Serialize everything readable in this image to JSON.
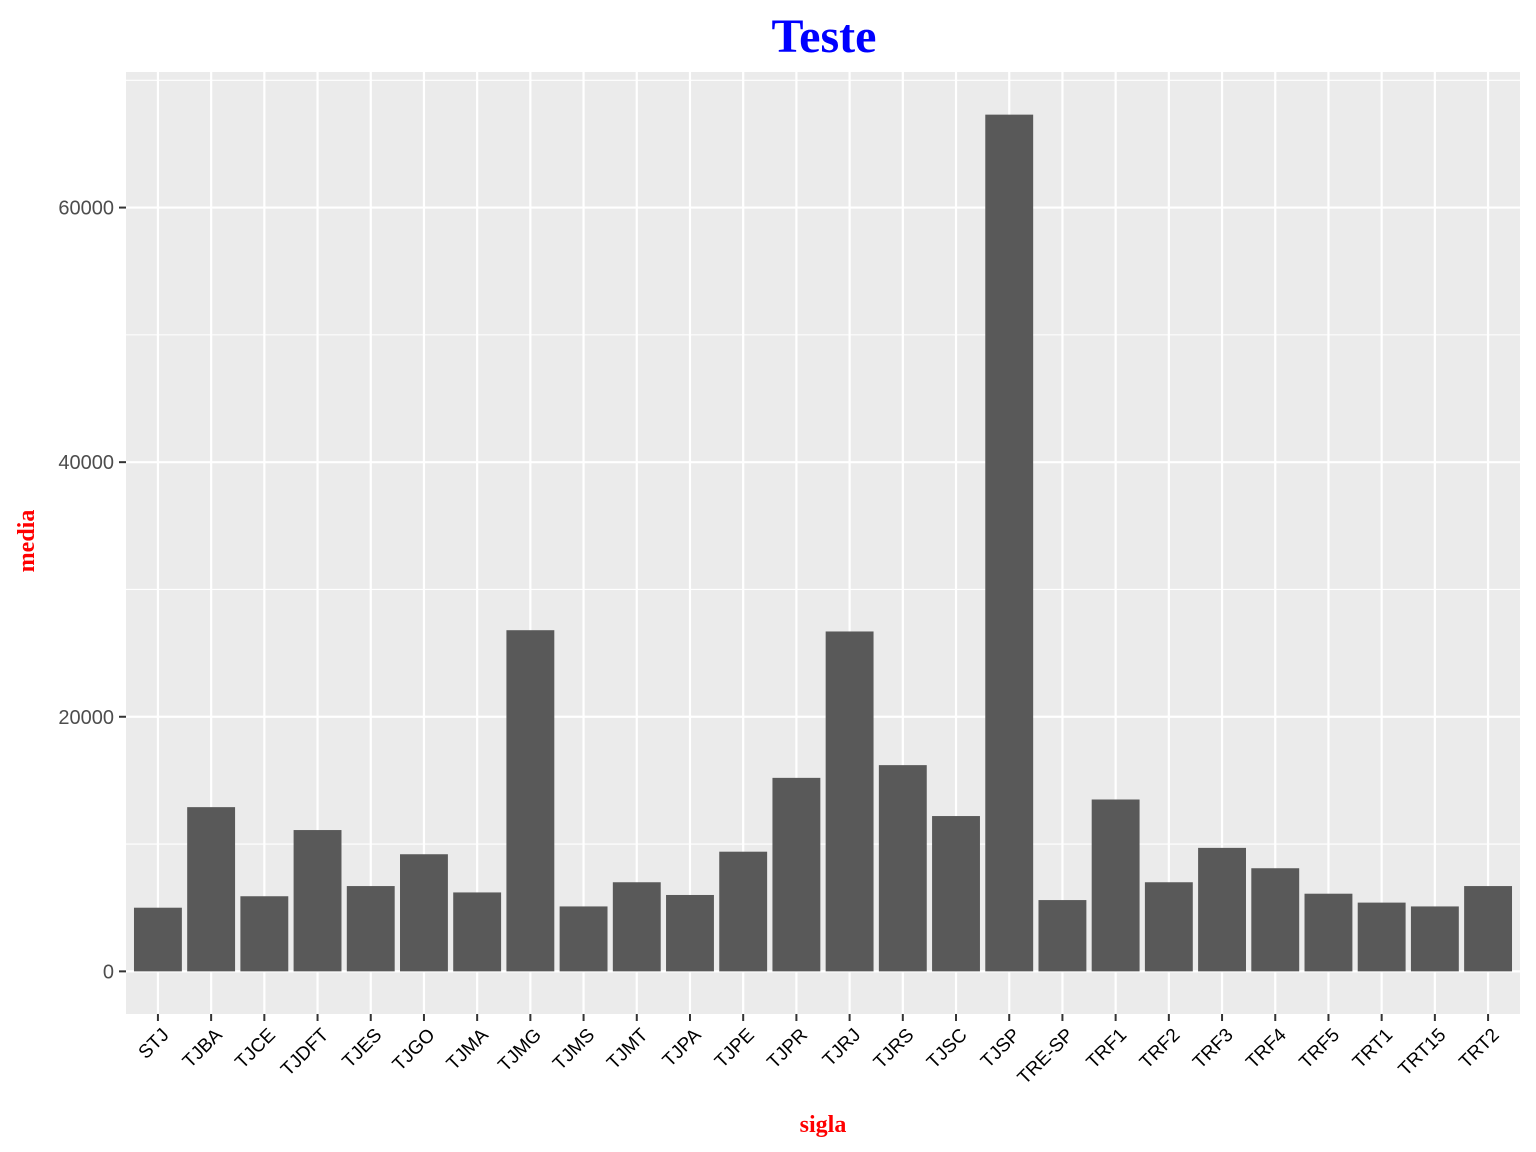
{
  "chart_data": {
    "type": "bar",
    "title": "Teste",
    "xlabel": "sigla",
    "ylabel": "media",
    "categories": [
      "STJ",
      "TJBA",
      "TJCE",
      "TJDFT",
      "TJES",
      "TJGO",
      "TJMA",
      "TJMG",
      "TJMS",
      "TJMT",
      "TJPA",
      "TJPE",
      "TJPR",
      "TJRJ",
      "TJRS",
      "TJSC",
      "TJSP",
      "TRE-SP",
      "TRF1",
      "TRF2",
      "TRF3",
      "TRF4",
      "TRF5",
      "TRT1",
      "TRT15",
      "TRT2"
    ],
    "values": [
      5000,
      12900,
      5900,
      11100,
      6700,
      9200,
      6200,
      26800,
      5100,
      7000,
      6000,
      9400,
      15200,
      26700,
      16200,
      12200,
      67300,
      5600,
      13500,
      7000,
      9700,
      8100,
      6100,
      5400,
      5100,
      6700
    ],
    "yticks": [
      0,
      20000,
      40000,
      60000
    ],
    "ylim": [
      -3350,
      70650
    ],
    "grid": true,
    "legend": "none",
    "colors": {
      "bar": "#595959",
      "panel": "#ebebeb",
      "grid": "#ffffff",
      "title": "#0000ff",
      "axis_title": "#ff0000"
    }
  }
}
